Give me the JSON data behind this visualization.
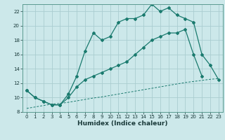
{
  "title": "",
  "xlabel": "Humidex (Indice chaleur)",
  "bg_color": "#cce8ea",
  "grid_color": "#aacdd0",
  "line_color": "#1a7a6e",
  "xlim": [
    -0.5,
    23.5
  ],
  "ylim": [
    8,
    23
  ],
  "xticks": [
    0,
    1,
    2,
    3,
    4,
    5,
    6,
    7,
    8,
    9,
    10,
    11,
    12,
    13,
    14,
    15,
    16,
    17,
    18,
    19,
    20,
    21,
    22,
    23
  ],
  "yticks": [
    8,
    10,
    12,
    14,
    16,
    18,
    20,
    22
  ],
  "line1_x": [
    0,
    1,
    2,
    3,
    4,
    5,
    6,
    7,
    8,
    9,
    10,
    11,
    12,
    13,
    14,
    15,
    16,
    17,
    18,
    19,
    20,
    21,
    22,
    23
  ],
  "line1_y": [
    11,
    10,
    9.5,
    9,
    9,
    10.5,
    13,
    16.5,
    19,
    18,
    18.5,
    20.5,
    21,
    21,
    21.5,
    23,
    22,
    22.5,
    21.5,
    21,
    20.5,
    16,
    14.5,
    12.5
  ],
  "line2_x": [
    0,
    1,
    2,
    3,
    4,
    5,
    6,
    7,
    8,
    9,
    10,
    11,
    12,
    13,
    14,
    15,
    16,
    17,
    18,
    19,
    20,
    21,
    22,
    23
  ],
  "line2_y": [
    11,
    10,
    9.5,
    9,
    9,
    10,
    11.5,
    12.5,
    13,
    13.5,
    14,
    14.5,
    15,
    16,
    17,
    18,
    18.5,
    19,
    19,
    19.5,
    16,
    13,
    null,
    null
  ],
  "line3_x": [
    0,
    1,
    2,
    3,
    4,
    5,
    6,
    7,
    8,
    9,
    10,
    11,
    12,
    13,
    14,
    15,
    16,
    17,
    18,
    19,
    20,
    21,
    22,
    23
  ],
  "line3_y": [
    8.5,
    8.7,
    8.9,
    9.1,
    9.2,
    9.35,
    9.55,
    9.75,
    9.95,
    10.1,
    10.3,
    10.5,
    10.7,
    10.9,
    11.1,
    11.3,
    11.5,
    11.7,
    11.9,
    12.1,
    12.25,
    12.4,
    12.55,
    12.65
  ]
}
